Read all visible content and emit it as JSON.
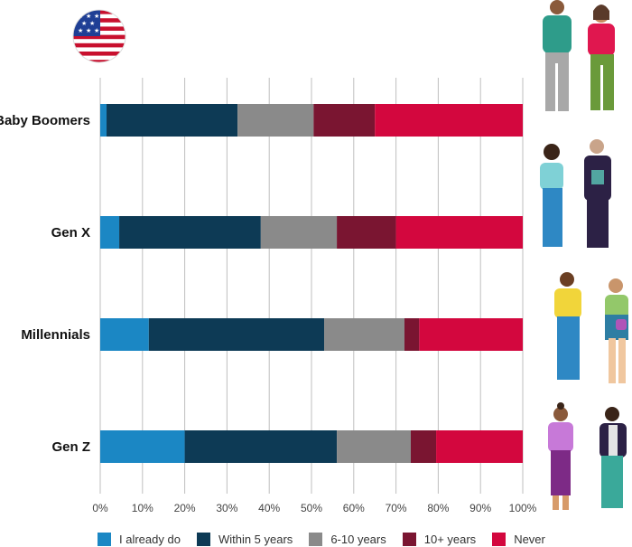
{
  "chart_data": {
    "type": "bar",
    "orientation": "horizontal",
    "stacked": true,
    "normalized_percent": true,
    "categories": [
      "Baby Boomers",
      "Gen X",
      "Millennials",
      "Gen Z"
    ],
    "series": [
      {
        "name": "I already do",
        "color": "#1b87c4",
        "values": [
          1.5,
          4.5,
          11.5,
          20
        ]
      },
      {
        "name": "Within 5 years",
        "color": "#0d3a55",
        "values": [
          31,
          33.5,
          41.5,
          36
        ]
      },
      {
        "name": "6-10 years",
        "color": "#8a8a8a",
        "values": [
          18,
          18,
          19,
          17.5
        ]
      },
      {
        "name": "10+ years",
        "color": "#7a1531",
        "values": [
          14.5,
          14,
          3.5,
          6
        ]
      },
      {
        "name": "Never",
        "color": "#d3073e",
        "values": [
          35,
          30,
          24.5,
          20.5
        ]
      }
    ],
    "xticks": [
      "0%",
      "10%",
      "20%",
      "30%",
      "40%",
      "50%",
      "60%",
      "70%",
      "80%",
      "90%",
      "100%"
    ],
    "xlim": [
      0,
      100
    ],
    "grid": true,
    "legend_position": "bottom",
    "icons": [
      "us-flag-icon",
      "baby-boomers-people-icon",
      "gen-x-people-icon",
      "millennials-people-icon",
      "gen-z-people-icon"
    ]
  }
}
